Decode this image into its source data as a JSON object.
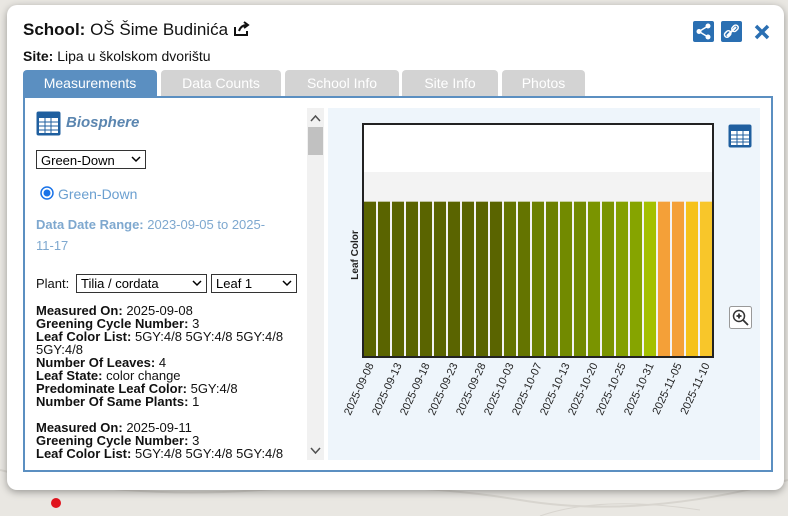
{
  "header": {
    "school_label": "School:",
    "school_name": "OŠ Šime Budinića",
    "site_label": "Site:",
    "site_name": "Lipa u školskom dvorištu"
  },
  "tabs": [
    "Measurements",
    "Data Counts",
    "School Info",
    "Site Info",
    "Photos"
  ],
  "panel": {
    "protocol": "Biosphere",
    "protocol_select": "Green-Down",
    "radio_option": "Green-Down",
    "date_range_label": "Data Date Range:",
    "date_range": "2023-09-05 to 2025-11-17",
    "plant_label": "Plant:",
    "plant_select": "Tilia / cordata",
    "leaf_select": "Leaf 1"
  },
  "measurements": [
    [
      {
        "label": "Measured On:",
        "value": "2025-09-08"
      },
      {
        "label": "Greening Cycle Number:",
        "value": "3"
      },
      {
        "label": "Leaf Color List:",
        "value": "5GY:4/8 5GY:4/8 5GY:4/8 5GY:4/8"
      },
      {
        "label": "Number Of Leaves:",
        "value": "4"
      },
      {
        "label": "Leaf State:",
        "value": "color change"
      },
      {
        "label": "Predominate Leaf Color:",
        "value": "5GY:4/8"
      },
      {
        "label": "Number Of Same Plants:",
        "value": "1"
      }
    ],
    [
      {
        "label": "Measured On:",
        "value": "2025-09-11"
      },
      {
        "label": "Greening Cycle Number:",
        "value": "3"
      },
      {
        "label": "Leaf Color List:",
        "value": "5GY:4/8 5GY:4/8 5GY:4/8"
      }
    ]
  ],
  "chart_data": {
    "type": "bar",
    "y_label": "Leaf Color",
    "categories": [
      "2025-09-08",
      null,
      "2025-09-13",
      null,
      "2025-09-18",
      null,
      "2025-09-23",
      null,
      "2025-09-28",
      null,
      "2025-10-03",
      null,
      "2025-10-07",
      null,
      "2025-10-13",
      null,
      "2025-10-20",
      null,
      "2025-10-25",
      null,
      "2025-10-31",
      null,
      "2025-11-05",
      null,
      "2025-11-10"
    ],
    "values": [
      2,
      2,
      2,
      2,
      2,
      2,
      2,
      2,
      2,
      2,
      2,
      2,
      2,
      2,
      2,
      2,
      2,
      2,
      2,
      2,
      2,
      2,
      2,
      2,
      2
    ],
    "colors": [
      "#5a6400",
      "#5a6400",
      "#5a6400",
      "#5a6400",
      "#5a6400",
      "#5a6400",
      "#5a6400",
      "#5a6400",
      "#5a6400",
      "#5a6400",
      "#647400",
      "#647400",
      "#6c8000",
      "#6c8000",
      "#728a00",
      "#728a00",
      "#7a9400",
      "#7a9400",
      "#84a000",
      "#86a400",
      "#a4c000",
      "#f4a038",
      "#f4a038",
      "#f6c21a",
      "#f8c62a"
    ],
    "ylim": [
      0,
      3
    ]
  }
}
